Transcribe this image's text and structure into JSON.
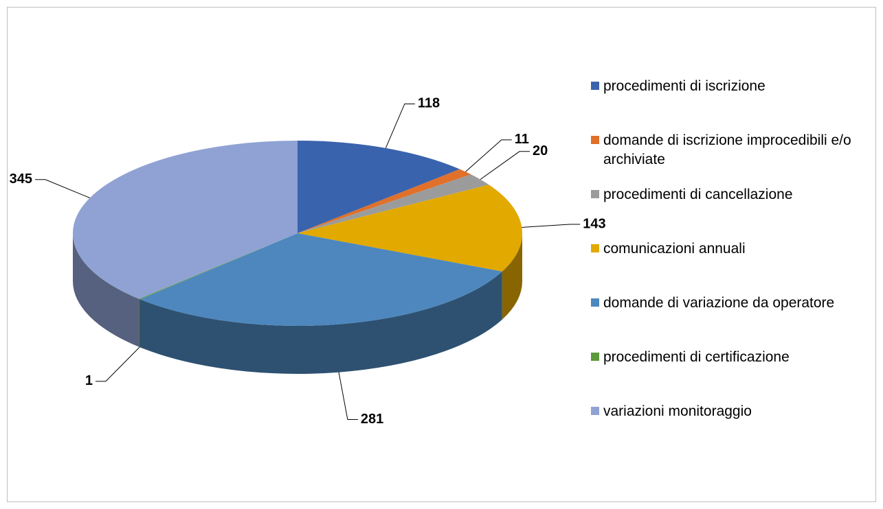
{
  "chart_data": {
    "type": "pie",
    "categories": [
      "procedimenti di iscrizione",
      "domande di iscrizione improcedibili e/o archiviate",
      "procedimenti di cancellazione",
      "comunicazioni annuali",
      "domande di variazione da operatore",
      "procedimenti di certificazione",
      "variazioni monitoraggio"
    ],
    "values": [
      118,
      11,
      20,
      143,
      281,
      1,
      345
    ],
    "colors": [
      "#3a63ad",
      "#e0702a",
      "#9b9b9b",
      "#e2a900",
      "#4d87bd",
      "#5b9b3a",
      "#8fa2d3"
    ],
    "legend": "right"
  }
}
